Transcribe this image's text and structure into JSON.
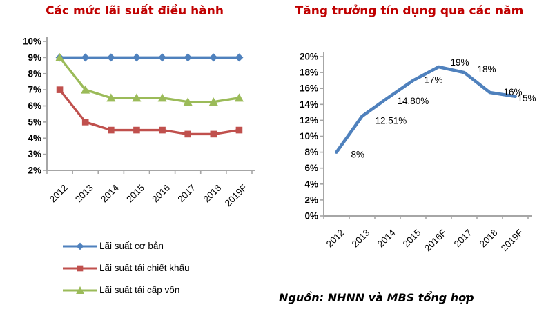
{
  "colors": {
    "title": "#C00000",
    "axis": "#A6A6A6",
    "text": "#000000",
    "series_blue": "#4F81BD",
    "series_red": "#C0504D",
    "series_green": "#9BBB59"
  },
  "source_note": "Nguồn: NHNN và MBS tổng hợp",
  "chart_data": [
    {
      "type": "line",
      "title": "Các mức lãi suất điều hành",
      "categories": [
        "2012",
        "2013",
        "2014",
        "2015",
        "2016",
        "2017",
        "2018",
        "2019F"
      ],
      "series": [
        {
          "name": "Lãi suất cơ bản",
          "color": "#4F81BD",
          "marker": "diamond",
          "values": [
            9,
            9,
            9,
            9,
            9,
            9,
            9,
            9
          ]
        },
        {
          "name": "Lãi suất tái chiết khấu",
          "color": "#C0504D",
          "marker": "square",
          "values": [
            7,
            5,
            4.5,
            4.5,
            4.5,
            4.25,
            4.25,
            4.5
          ]
        },
        {
          "name": "Lãi suất tái cấp vốn",
          "color": "#9BBB59",
          "marker": "triangle",
          "values": [
            9,
            7,
            6.5,
            6.5,
            6.5,
            6.25,
            6.25,
            6.5
          ]
        }
      ],
      "ylim": [
        2,
        10
      ],
      "yticks": [
        "10%",
        "9%",
        "8%",
        "7%",
        "6%",
        "5%",
        "4%",
        "3%",
        "2%"
      ],
      "grid": false,
      "legend_position": "bottom-left"
    },
    {
      "type": "line",
      "title": "Tăng trưởng tín dụng qua các năm",
      "categories": [
        "2012",
        "2013",
        "2014",
        "2015",
        "2016F",
        "2017",
        "2018",
        "2019F"
      ],
      "series": [
        {
          "name": "Tăng trưởng tín dụng",
          "color": "#4F81BD",
          "marker": "none",
          "values": [
            8,
            12.51,
            14.8,
            17,
            18.7,
            18,
            15.5,
            15
          ],
          "labels": [
            "8%",
            "12.51%",
            "14.80%",
            "17%",
            "19%",
            "18%",
            "16%",
            "15%"
          ]
        }
      ],
      "ylim": [
        0,
        20
      ],
      "yticks": [
        "20%",
        "18%",
        "16%",
        "14%",
        "12%",
        "10%",
        "8%",
        "6%",
        "4%",
        "2%",
        "0%"
      ],
      "grid": false,
      "legend_position": "none"
    }
  ]
}
